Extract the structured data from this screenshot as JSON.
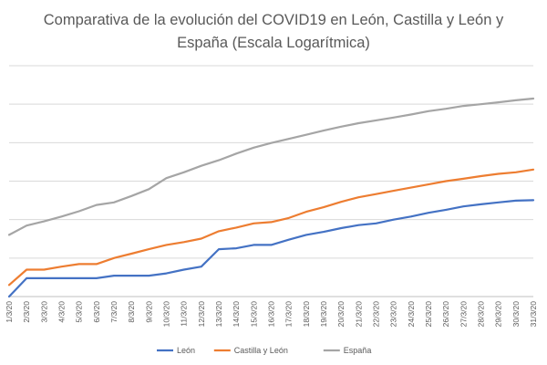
{
  "chart_data": {
    "type": "line",
    "title": "Comparativa de la evolución del COVID19 en León, Castilla y León y España (Escala Logarítmica)",
    "xlabel": "",
    "ylabel": "",
    "y_scale": "log",
    "grid": "horizontal",
    "legend_position": "bottom",
    "categories": [
      "1/3/20",
      "2/3/20",
      "3/3/20",
      "4/3/20",
      "5/3/20",
      "6/3/20",
      "7/3/20",
      "8/3/20",
      "9/3/20",
      "10/3/20",
      "11/3/20",
      "12/3/20",
      "13/3/20",
      "14/3/20",
      "15/3/20",
      "16/3/20",
      "17/3/20",
      "18/3/20",
      "19/3/20",
      "20/3/20",
      "21/3/20",
      "22/3/20",
      "23/3/20",
      "24/3/20",
      "25/3/20",
      "26/3/20",
      "27/3/20",
      "28/3/20",
      "29/3/20",
      "30/3/20",
      "31/3/20"
    ],
    "ylim": [
      1,
      1000000
    ],
    "series": [
      {
        "name": "León",
        "color": "#4472C4",
        "values": [
          1,
          3,
          3,
          3,
          3,
          3,
          3.5,
          3.5,
          3.5,
          4,
          5,
          6,
          17,
          18,
          22,
          22,
          30,
          40,
          48,
          60,
          72,
          80,
          100,
          120,
          150,
          180,
          220,
          250,
          280,
          310,
          320
        ]
      },
      {
        "name": "Castilla y León",
        "color": "#ED7D31",
        "values": [
          2,
          5,
          5,
          6,
          7,
          7,
          10,
          13,
          17,
          22,
          26,
          32,
          50,
          62,
          80,
          86,
          110,
          160,
          210,
          290,
          380,
          460,
          560,
          680,
          820,
          1000,
          1150,
          1350,
          1550,
          1700,
          2000
        ]
      },
      {
        "name": "España",
        "color": "#A5A5A5",
        "values": [
          40,
          70,
          90,
          120,
          165,
          240,
          280,
          410,
          620,
          1200,
          1700,
          2500,
          3500,
          5200,
          7400,
          9800,
          12500,
          16000,
          20600,
          26000,
          32000,
          38000,
          45000,
          54000,
          66000,
          76000,
          90000,
          100000,
          112000,
          126000,
          140000
        ]
      }
    ]
  }
}
